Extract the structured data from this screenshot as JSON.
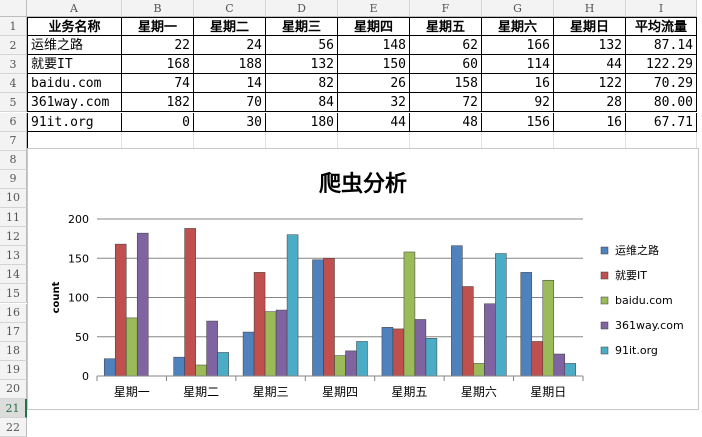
{
  "columns": [
    "A",
    "B",
    "C",
    "D",
    "E",
    "F",
    "G",
    "H",
    "I"
  ],
  "rows": [
    "1",
    "2",
    "3",
    "4",
    "5",
    "6",
    "7",
    "8",
    "9",
    "10",
    "11",
    "12",
    "13",
    "14",
    "15",
    "16",
    "17",
    "18",
    "19",
    "20",
    "21",
    "22"
  ],
  "selected_row": "21",
  "table": {
    "headers": [
      "业务名称",
      "星期一",
      "星期二",
      "星期三",
      "星期四",
      "星期五",
      "星期六",
      "星期日",
      "平均流量"
    ],
    "rows": [
      [
        "运维之路",
        "22",
        "24",
        "56",
        "148",
        "62",
        "166",
        "132",
        "87.14"
      ],
      [
        "就要IT",
        "168",
        "188",
        "132",
        "150",
        "60",
        "114",
        "44",
        "122.29"
      ],
      [
        "baidu.com",
        "74",
        "14",
        "82",
        "26",
        "158",
        "16",
        "122",
        "70.29"
      ],
      [
        "361way.com",
        "182",
        "70",
        "84",
        "32",
        "72",
        "92",
        "28",
        "80.00"
      ],
      [
        "91it.org",
        "0",
        "30",
        "180",
        "44",
        "48",
        "156",
        "16",
        "67.71"
      ]
    ]
  },
  "chart_data": {
    "type": "bar",
    "title": "爬虫分析",
    "xlabel": "",
    "ylabel": "count",
    "ylim": [
      0,
      200
    ],
    "yticks": [
      "0",
      "50",
      "100",
      "150",
      "200"
    ],
    "grid": true,
    "legend_position": "right",
    "categories": [
      "星期一",
      "星期二",
      "星期三",
      "星期四",
      "星期五",
      "星期六",
      "星期日"
    ],
    "series": [
      {
        "name": "运维之路",
        "color": "#4f81bd",
        "values": [
          22,
          24,
          56,
          148,
          62,
          166,
          132
        ]
      },
      {
        "name": "就要IT",
        "color": "#c0504d",
        "values": [
          168,
          188,
          132,
          150,
          60,
          114,
          44
        ]
      },
      {
        "name": "baidu.com",
        "color": "#9bbb59",
        "values": [
          74,
          14,
          82,
          26,
          158,
          16,
          122
        ]
      },
      {
        "name": "361way.com",
        "color": "#8064a2",
        "values": [
          182,
          70,
          84,
          32,
          72,
          92,
          28
        ]
      },
      {
        "name": "91it.org",
        "color": "#4bacc6",
        "values": [
          0,
          30,
          180,
          44,
          48,
          156,
          16
        ]
      }
    ]
  }
}
